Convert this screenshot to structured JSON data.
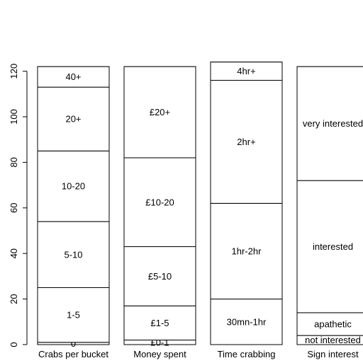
{
  "chart_data": {
    "type": "bar",
    "subtype": "stacked",
    "ylim": [
      0,
      120
    ],
    "yticks": [
      0,
      20,
      40,
      60,
      80,
      100,
      120
    ],
    "categories": [
      "Crabs per bucket",
      "Money spent",
      "Time crabbing",
      "Sign interest"
    ],
    "columns": [
      {
        "name": "Crabs per bucket",
        "segments": [
          {
            "label": "0",
            "value": 1
          },
          {
            "label": "1-5",
            "value": 24
          },
          {
            "label": "5-10",
            "value": 29
          },
          {
            "label": "10-20",
            "value": 31
          },
          {
            "label": "20+",
            "value": 28
          },
          {
            "label": "40+",
            "value": 9
          }
        ]
      },
      {
        "name": "Money spent",
        "segments": [
          {
            "label": "£0-1",
            "value": 2
          },
          {
            "label": "£1-5",
            "value": 15
          },
          {
            "label": "£5-10",
            "value": 26
          },
          {
            "label": "£10-20",
            "value": 39
          },
          {
            "label": "£20+",
            "value": 40
          }
        ]
      },
      {
        "name": "Time crabbing",
        "segments": [
          {
            "label": "30mn-1hr",
            "value": 20
          },
          {
            "label": "1hr-2hr",
            "value": 42
          },
          {
            "label": "2hr+",
            "value": 54
          },
          {
            "label": "4hr+",
            "value": 8
          }
        ]
      },
      {
        "name": "Sign interest",
        "segments": [
          {
            "label": "not interested",
            "value": 4
          },
          {
            "label": "apathetic",
            "value": 10
          },
          {
            "label": "interested",
            "value": 58
          },
          {
            "label": "very interested",
            "value": 50
          }
        ]
      }
    ],
    "colors": {
      "fill": "#ffffff",
      "stroke": "#000000",
      "text": "#000000"
    }
  }
}
